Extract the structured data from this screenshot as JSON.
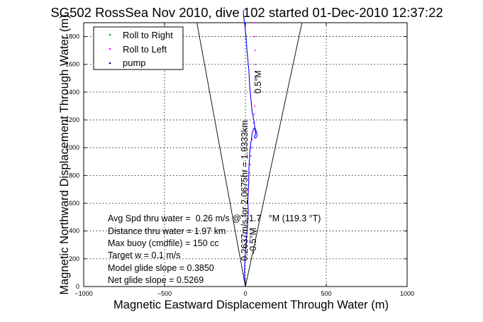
{
  "chart_data": {
    "type": "line",
    "title": "SG502 RossSea Nov 2010, dive 102 started 01-Dec-2010 12:37:22",
    "xlabel": "Magnetic Eastward Displacement Through Water (m)",
    "ylabel": "Magnetic Northward Displacement Through Water (m)",
    "xlim": [
      -1000,
      1000
    ],
    "ylim": [
      0,
      1900
    ],
    "xticks": [
      -1000,
      -500,
      0,
      500,
      1000
    ],
    "yticks": [
      0,
      200,
      400,
      600,
      800,
      1000,
      1200,
      1400,
      1600,
      1800
    ],
    "grid": true,
    "legend": {
      "placement": "top-left",
      "entries": [
        {
          "label": "Roll to Right",
          "color": "#00aa00",
          "marker": "."
        },
        {
          "label": "Roll to Left",
          "color": "#ff00ff",
          "marker": "."
        },
        {
          "label": "pump",
          "color": "#000080",
          "marker": "."
        }
      ]
    },
    "series": [
      {
        "style": "track",
        "color": "#0000ff",
        "x": [
          0,
          -4,
          -6,
          -5,
          -3,
          0,
          4,
          7,
          12,
          15,
          18,
          16,
          15,
          17,
          19,
          20,
          21,
          22,
          24,
          26,
          28,
          30,
          32,
          34,
          36,
          38,
          40,
          43,
          46,
          50,
          55,
          60,
          63,
          60,
          55,
          58,
          64,
          70,
          72,
          66,
          60,
          58,
          56,
          55,
          52,
          48,
          42,
          38,
          34,
          30,
          26,
          24,
          22,
          18,
          14,
          10,
          8,
          6,
          4,
          2,
          -1,
          -3,
          -5,
          -8,
          -10,
          -12,
          -12
        ],
        "y": [
          20,
          60,
          100,
          150,
          200,
          250,
          300,
          350,
          420,
          480,
          540,
          580,
          620,
          660,
          700,
          750,
          800,
          850,
          900,
          950,
          980,
          1000,
          1020,
          1040,
          1050,
          1070,
          1090,
          1110,
          1120,
          1135,
          1140,
          1130,
          1110,
          1090,
          1080,
          1070,
          1070,
          1080,
          1100,
          1120,
          1140,
          1150,
          1160,
          1180,
          1200,
          1220,
          1260,
          1300,
          1350,
          1400,
          1450,
          1500,
          1550,
          1600,
          1650,
          1700,
          1730,
          1760,
          1790,
          1820,
          1850,
          1880,
          1900,
          1920,
          1940,
          1960,
          1990
        ]
      },
      {
        "style": "roll-left-markers",
        "color": "#ff00ff",
        "x": [
          18,
          22,
          26,
          30,
          34,
          38,
          42,
          46,
          50,
          54,
          58,
          60,
          62,
          62,
          60,
          58,
          56
        ],
        "y": [
          700,
          760,
          820,
          880,
          940,
          1000,
          1060,
          1120,
          1180,
          1240,
          1300,
          1400,
          1500,
          1600,
          1700,
          1800,
          1900
        ]
      },
      {
        "style": "cone-left",
        "color": "#000000",
        "x": [
          0,
          -300
        ],
        "y": [
          0,
          1900
        ]
      },
      {
        "style": "cone-right",
        "color": "#000000",
        "x": [
          0,
          350
        ],
        "y": [
          0,
          1900
        ]
      }
    ],
    "annotations": {
      "heading_upper": "0.5°M",
      "heading_lower": "-0.5°M",
      "track_label": "0.2637m/s for 2.0675hr = 1.9333km",
      "stats": [
        "Avg Spd thru water =  0.26 m/s @  -1.7   °M (119.3 °T)",
        "Distance thru water =  1.97 km",
        "Max buoy (cmdfile) = 150 cc",
        "Target w = 0.1 m/s",
        "Model glide slope = 0.3850",
        "Net glide slope = 0.5269"
      ]
    }
  }
}
